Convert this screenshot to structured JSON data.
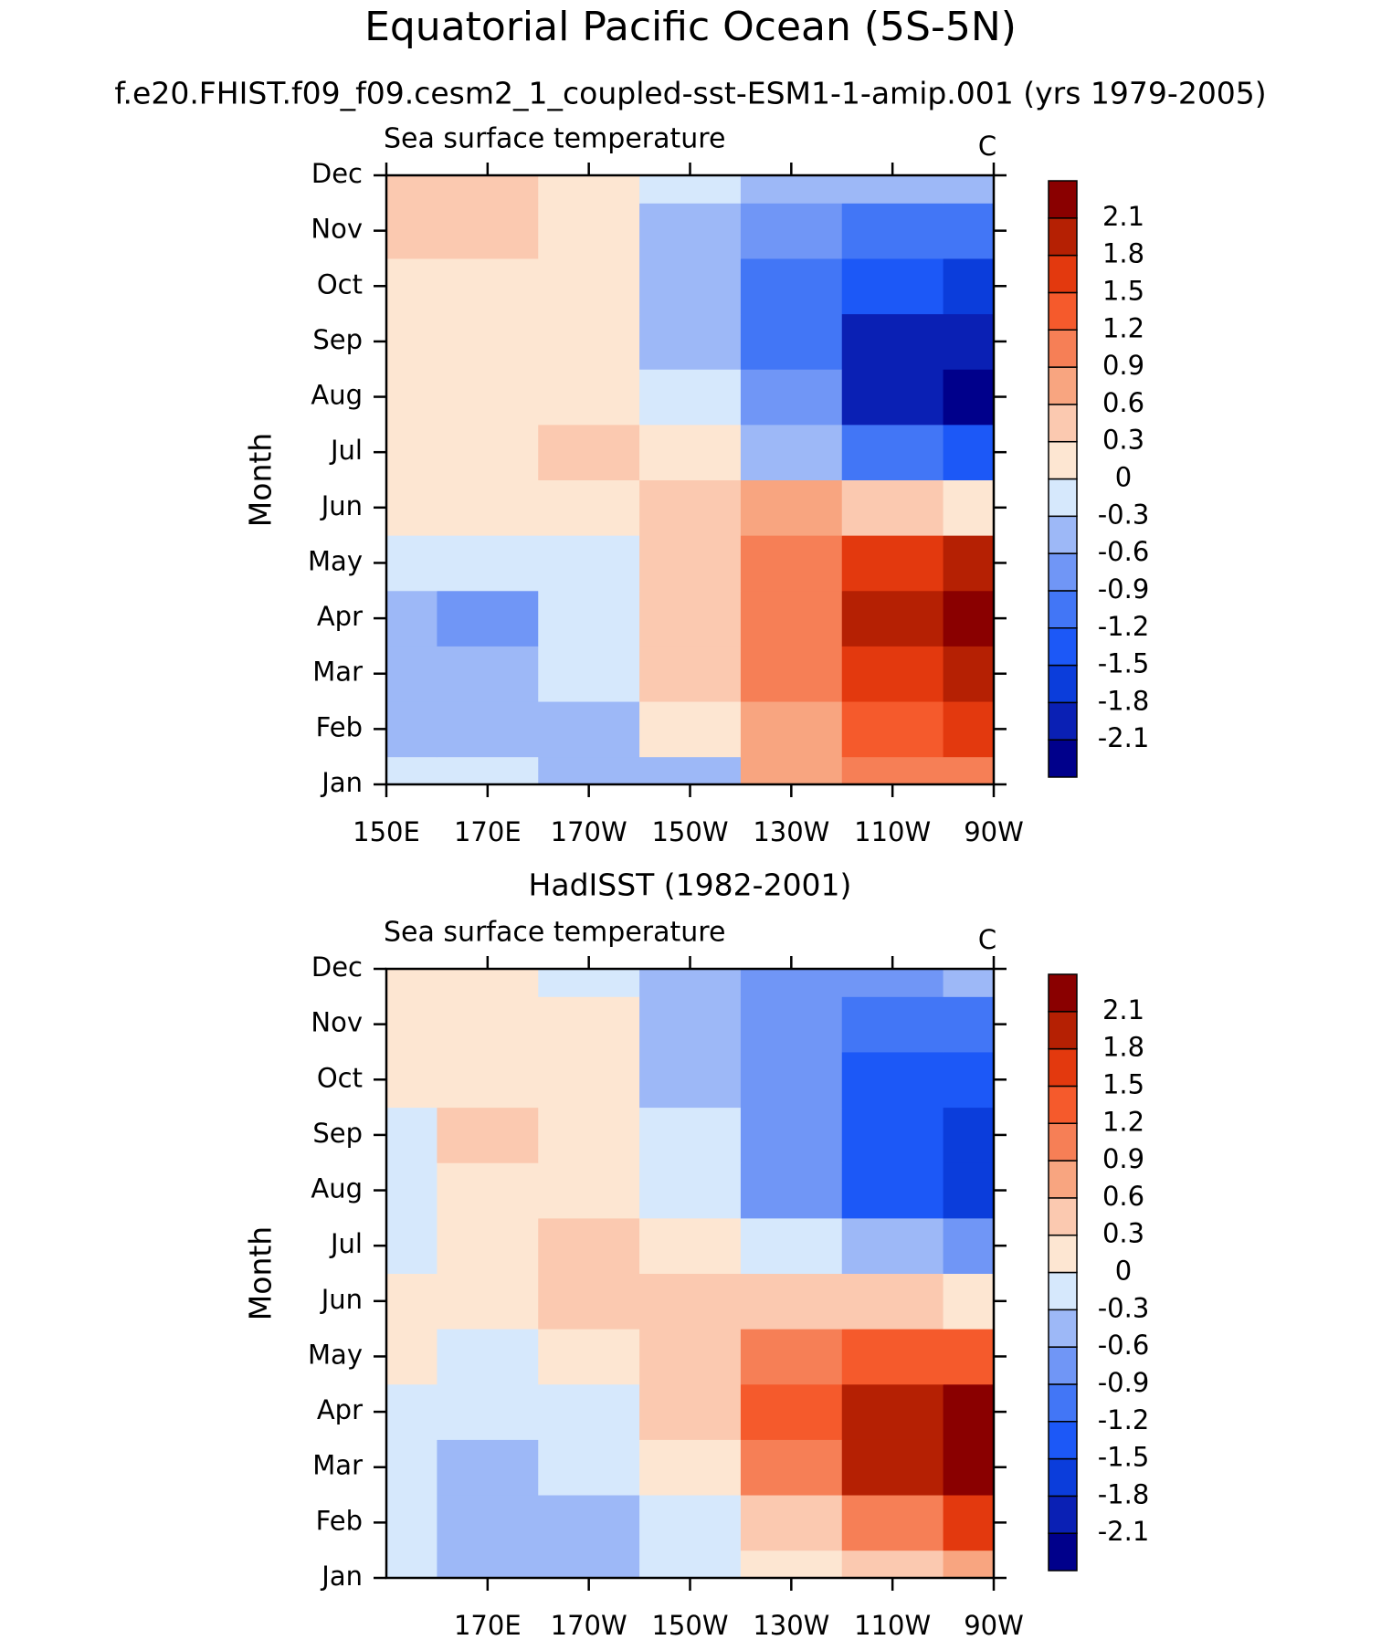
{
  "title": "Equatorial Pacific Ocean (5S-5N)",
  "subtitle": "f.e20.FHIST.f09_f09.cesm2_1_coupled-sst-ESM1-1-amip.001 (yrs 1979-2005)",
  "chart_data": [
    {
      "type": "contour",
      "subtitle": "Sea surface temperature",
      "units": "C",
      "y_label": "Month",
      "x": [
        150,
        170,
        190,
        210,
        230,
        250,
        270
      ],
      "xlim": [
        150,
        270
      ],
      "xticks": [
        {
          "value": 150,
          "label": "150E"
        },
        {
          "value": 170,
          "label": "170E"
        },
        {
          "value": 190,
          "label": "170W"
        },
        {
          "value": 210,
          "label": "150W"
        },
        {
          "value": 230,
          "label": "130W"
        },
        {
          "value": 250,
          "label": "110W"
        },
        {
          "value": 270,
          "label": "90W"
        }
      ],
      "categories": [
        "Jan",
        "Feb",
        "Mar",
        "Apr",
        "May",
        "Jun",
        "Jul",
        "Aug",
        "Sep",
        "Oct",
        "Nov",
        "Dec"
      ],
      "values": [
        [
          -0.2,
          -0.2,
          -0.4,
          -0.4,
          0.6,
          1.0,
          1.0
        ],
        [
          -0.4,
          -0.5,
          -0.4,
          0.1,
          0.7,
          1.2,
          1.5
        ],
        [
          -0.4,
          -0.5,
          -0.2,
          0.3,
          0.9,
          1.6,
          2.0
        ],
        [
          -0.5,
          -0.8,
          -0.3,
          0.4,
          1.0,
          1.9,
          2.3
        ],
        [
          -0.3,
          -0.3,
          -0.1,
          0.5,
          0.9,
          1.5,
          2.0
        ],
        [
          0.1,
          0.1,
          0.2,
          0.4,
          0.6,
          0.3,
          0.1
        ],
        [
          0.1,
          0.1,
          0.3,
          0.1,
          -0.4,
          -1.2,
          -1.5
        ],
        [
          0.1,
          0.1,
          0.1,
          -0.2,
          -0.8,
          -1.9,
          -2.2
        ],
        [
          0.1,
          0.1,
          0.1,
          -0.4,
          -1.2,
          -1.9,
          -2.0
        ],
        [
          0.2,
          0.1,
          0.1,
          -0.5,
          -1.0,
          -1.5,
          -1.7
        ],
        [
          0.4,
          0.4,
          0.1,
          -0.4,
          -0.8,
          -1.0,
          -1.2
        ],
        [
          0.4,
          0.4,
          0.1,
          -0.3,
          -0.5,
          -0.6,
          -0.6
        ]
      ],
      "levels": [
        -2.1,
        -1.8,
        -1.5,
        -1.2,
        -0.9,
        -0.6,
        -0.3,
        0,
        0.3,
        0.6,
        0.9,
        1.2,
        1.5,
        1.8,
        2.1
      ],
      "colors": [
        "#00008b",
        "#0a20b4",
        "#0b3ddb",
        "#1c58f7",
        "#4276f6",
        "#7096f6",
        "#9db8f7",
        "#d6e8fc",
        "#fde6d2",
        "#fbc9b0",
        "#f8a580",
        "#f67f56",
        "#f55a2c",
        "#e3390e",
        "#b52003",
        "#8a0000"
      ]
    },
    {
      "type": "contour",
      "title": "HadISST (1982-2001)",
      "subtitle": "Sea surface temperature",
      "units": "C",
      "y_label": "Month",
      "x": [
        150,
        170,
        190,
        210,
        230,
        250,
        270
      ],
      "xlim": [
        150,
        270
      ],
      "xticks": [
        {
          "value": 170,
          "label": "170E"
        },
        {
          "value": 190,
          "label": "170W"
        },
        {
          "value": 210,
          "label": "150W"
        },
        {
          "value": 230,
          "label": "130W"
        },
        {
          "value": 250,
          "label": "110W"
        },
        {
          "value": 270,
          "label": "90W"
        }
      ],
      "categories": [
        "Jan",
        "Feb",
        "Mar",
        "Apr",
        "May",
        "Jun",
        "Jul",
        "Aug",
        "Sep",
        "Oct",
        "Nov",
        "Dec"
      ],
      "values": [
        [
          -0.1,
          -0.5,
          -0.4,
          -0.2,
          0.1,
          0.5,
          0.8
        ],
        [
          -0.1,
          -0.6,
          -0.5,
          -0.2,
          0.4,
          1.0,
          1.5
        ],
        [
          -0.1,
          -0.5,
          -0.3,
          0.2,
          0.9,
          1.8,
          2.2
        ],
        [
          -0.1,
          -0.3,
          -0.1,
          0.4,
          1.3,
          1.9,
          2.1
        ],
        [
          0.1,
          -0.1,
          0.2,
          0.5,
          1.0,
          1.3,
          1.4
        ],
        [
          0.1,
          0.1,
          0.3,
          0.5,
          0.5,
          0.4,
          0.2
        ],
        [
          -0.1,
          0.1,
          0.3,
          0.1,
          -0.3,
          -0.6,
          -0.9
        ],
        [
          -0.2,
          0.1,
          0.1,
          -0.2,
          -0.7,
          -1.3,
          -1.6
        ],
        [
          -0.2,
          0.3,
          0.1,
          -0.3,
          -0.8,
          -1.4,
          -1.7
        ],
        [
          0.1,
          0.1,
          0.0,
          -0.4,
          -0.8,
          -1.3,
          -1.5
        ],
        [
          0.1,
          0.1,
          0.0,
          -0.4,
          -0.8,
          -1.1,
          -1.1
        ],
        [
          0.1,
          0.1,
          -0.2,
          -0.5,
          -0.7,
          -0.8,
          -0.6
        ]
      ],
      "levels": [
        -2.1,
        -1.8,
        -1.5,
        -1.2,
        -0.9,
        -0.6,
        -0.3,
        0,
        0.3,
        0.6,
        0.9,
        1.2,
        1.5,
        1.8,
        2.1
      ],
      "colors": [
        "#00008b",
        "#0a20b4",
        "#0b3ddb",
        "#1c58f7",
        "#4276f6",
        "#7096f6",
        "#9db8f7",
        "#d6e8fc",
        "#fde6d2",
        "#fbc9b0",
        "#f8a580",
        "#f67f56",
        "#f55a2c",
        "#e3390e",
        "#b52003",
        "#8a0000"
      ]
    }
  ]
}
